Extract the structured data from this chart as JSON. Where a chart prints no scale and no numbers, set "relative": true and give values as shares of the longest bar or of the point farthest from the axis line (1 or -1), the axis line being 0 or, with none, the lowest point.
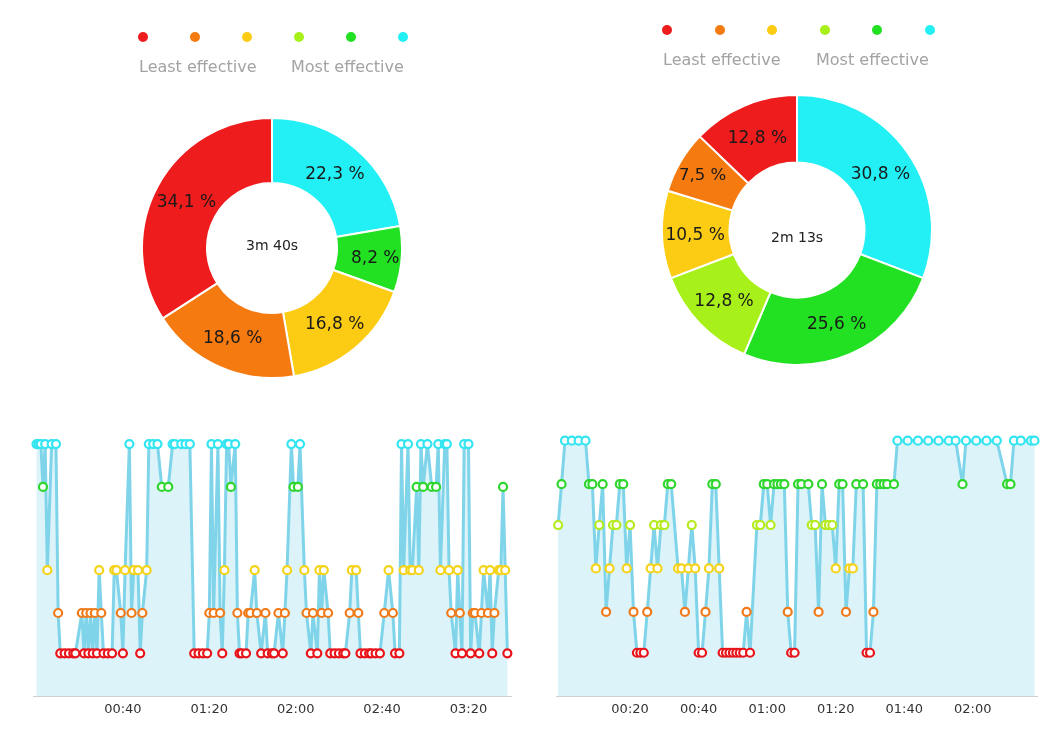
{
  "chart_data": [
    {
      "type": "donut",
      "categories": [
        null,
        null,
        null,
        null,
        null,
        null
      ],
      "values": [
        22.3,
        8.2,
        0,
        16.8,
        18.6,
        34.1
      ],
      "colors": [
        "#22f0f5",
        "#22e022",
        "#a8f01a",
        "#fccc14",
        "#f57a10",
        "#ee1c1c"
      ],
      "value_labels": [
        "22,3 %",
        "8,2 %",
        null,
        "16,8 %",
        "18,6 %",
        "34,1 %"
      ],
      "annotations": [
        "Least effective",
        "Most effective",
        "3m 40s"
      ]
    },
    {
      "type": "donut",
      "categories": [
        null,
        null,
        null,
        null,
        null,
        null
      ],
      "values": [
        30.8,
        25.6,
        12.8,
        10.5,
        7.5,
        12.8
      ],
      "colors": [
        "#22f0f5",
        "#22e022",
        "#a8f01a",
        "#fccc14",
        "#f57a10",
        "#ee1c1c"
      ],
      "value_labels": [
        "30,8 %",
        "25,6 %",
        "12,8 %",
        "10,5 %",
        "7,5 %",
        "12,8 %"
      ],
      "annotations": [
        "Least effective",
        "Most effective",
        "2m 13s"
      ]
    },
    {
      "type": "area",
      "relative": true,
      "marker": "circle",
      "line_style": "solid",
      "color": "#7fd4ea",
      "xlim": [
        -1.5,
        220
      ],
      "xticks": [
        {
          "value": 40,
          "label": "00:40"
        },
        {
          "value": 80,
          "label": "01:20"
        },
        {
          "value": 120,
          "label": "02:00"
        },
        {
          "value": 160,
          "label": "02:40"
        },
        {
          "value": 200,
          "label": "03:20"
        }
      ],
      "x": [
        0,
        1,
        2,
        3,
        4,
        5,
        7,
        9,
        10,
        11,
        13,
        15,
        17,
        18,
        21,
        22,
        23,
        24,
        25,
        26,
        27,
        28,
        29,
        30,
        31,
        33,
        35,
        36,
        37,
        39,
        40,
        41,
        43,
        44,
        45,
        47,
        48,
        49,
        51,
        52,
        54,
        56,
        58,
        61,
        63,
        64,
        67,
        69,
        71,
        73,
        75,
        77,
        79,
        80,
        81,
        82,
        84,
        85,
        86,
        87,
        88,
        89,
        90,
        92,
        93,
        94,
        95,
        97,
        98,
        99,
        101,
        102,
        104,
        106,
        107,
        109,
        110,
        112,
        114,
        115,
        116,
        118,
        119,
        121,
        122,
        124,
        125,
        127,
        128,
        130,
        131,
        132,
        133,
        135,
        136,
        138,
        140,
        142,
        143,
        145,
        146,
        148,
        149,
        150,
        152,
        154,
        155,
        157,
        159,
        161,
        163,
        165,
        166,
        168,
        169,
        170,
        172,
        173,
        174,
        176,
        177,
        178,
        179,
        181,
        183,
        185,
        186,
        187,
        189,
        190,
        191,
        192,
        194,
        195,
        196,
        197,
        198,
        200,
        201,
        202,
        203,
        205,
        206,
        207,
        209,
        210,
        211,
        212,
        214,
        215,
        216,
        217,
        218
      ],
      "values": [
        1,
        1,
        1,
        0.83,
        1,
        0.5,
        1,
        1,
        0.33,
        0.17,
        0.17,
        0.17,
        0.17,
        0.17,
        0.33,
        0.17,
        0.33,
        0.17,
        0.33,
        0.17,
        0.33,
        0.17,
        0.5,
        0.33,
        0.17,
        0.17,
        0.17,
        0.5,
        0.5,
        0.33,
        0.17,
        0.5,
        1,
        0.33,
        0.5,
        0.5,
        0.17,
        0.33,
        0.5,
        1,
        1,
        1,
        0.83,
        0.83,
        1,
        1,
        1,
        1,
        1,
        0.17,
        0.17,
        0.17,
        0.17,
        0.33,
        1,
        0.33,
        1,
        0.33,
        0.17,
        0.5,
        1,
        1,
        0.83,
        1,
        0.33,
        0.17,
        0.17,
        0.17,
        0.33,
        0.33,
        0.5,
        0.33,
        0.17,
        0.33,
        0.17,
        0.17,
        0.17,
        0.33,
        0.17,
        0.33,
        0.5,
        1,
        0.83,
        0.83,
        1,
        0.5,
        0.33,
        0.17,
        0.33,
        0.17,
        0.5,
        0.33,
        0.5,
        0.33,
        0.17,
        0.17,
        0.17,
        0.17,
        0.17,
        0.33,
        0.5,
        0.5,
        0.33,
        0.17,
        0.17,
        0.17,
        0.17,
        0.17,
        0.17,
        0.33,
        0.5,
        0.33,
        0.17,
        0.17,
        1,
        0.5,
        1,
        0.5,
        0.5,
        0.83,
        0.5,
        1,
        0.83,
        1,
        0.83,
        0.83,
        1,
        0.5,
        1,
        1,
        0.5,
        0.33,
        0.17,
        0.5,
        0.33,
        0.17,
        1,
        1,
        0.17,
        0.33,
        0.33,
        0.17,
        0.33,
        0.5,
        0.33,
        0.5,
        0.17,
        0.33,
        0.5,
        0.5,
        0.83,
        0.5,
        0.17
      ],
      "colors": [
        "#33e5f0",
        "#33e5f0",
        "#33e5f0",
        "#2ed62e",
        "#33e5f0",
        "#f5d31a",
        "#33e5f0",
        "#33e5f0",
        "#f07a1a",
        "#e8141a",
        "#e8141a",
        "#e8141a",
        "#e8141a",
        "#e8141a",
        "#f07a1a",
        "#e8141a",
        "#f07a1a",
        "#e8141a",
        "#f07a1a",
        "#e8141a",
        "#f07a1a",
        "#e8141a",
        "#f5d31a",
        "#f07a1a",
        "#e8141a",
        "#e8141a",
        "#e8141a",
        "#f5d31a",
        "#f5d31a",
        "#f07a1a",
        "#e8141a",
        "#f5d31a",
        "#33e5f0",
        "#f07a1a",
        "#f5d31a",
        "#f5d31a",
        "#e8141a",
        "#f07a1a",
        "#f5d31a",
        "#33e5f0",
        "#33e5f0",
        "#33e5f0",
        "#2ed62e",
        "#2ed62e",
        "#33e5f0",
        "#33e5f0",
        "#33e5f0",
        "#33e5f0",
        "#33e5f0",
        "#e8141a",
        "#e8141a",
        "#e8141a",
        "#e8141a",
        "#f07a1a",
        "#33e5f0",
        "#f07a1a",
        "#33e5f0",
        "#f07a1a",
        "#e8141a",
        "#f5d31a",
        "#33e5f0",
        "#33e5f0",
        "#2ed62e",
        "#33e5f0",
        "#f07a1a",
        "#e8141a",
        "#e8141a",
        "#e8141a",
        "#f07a1a",
        "#f07a1a",
        "#f5d31a",
        "#f07a1a",
        "#e8141a",
        "#f07a1a",
        "#e8141a",
        "#e8141a",
        "#e8141a",
        "#f07a1a",
        "#e8141a",
        "#f07a1a",
        "#f5d31a",
        "#33e5f0",
        "#2ed62e",
        "#2ed62e",
        "#33e5f0",
        "#f5d31a",
        "#f07a1a",
        "#e8141a",
        "#f07a1a",
        "#e8141a",
        "#f5d31a",
        "#f07a1a",
        "#f5d31a",
        "#f07a1a",
        "#e8141a",
        "#e8141a",
        "#e8141a",
        "#e8141a",
        "#e8141a",
        "#f07a1a",
        "#f5d31a",
        "#f5d31a",
        "#f07a1a",
        "#e8141a",
        "#e8141a",
        "#e8141a",
        "#e8141a",
        "#e8141a",
        "#e8141a",
        "#f07a1a",
        "#f5d31a",
        "#f07a1a",
        "#e8141a",
        "#e8141a",
        "#33e5f0",
        "#f5d31a",
        "#33e5f0",
        "#f5d31a",
        "#f5d31a",
        "#2ed62e",
        "#f5d31a",
        "#33e5f0",
        "#2ed62e",
        "#33e5f0",
        "#2ed62e",
        "#2ed62e",
        "#33e5f0",
        "#f5d31a",
        "#33e5f0",
        "#33e5f0",
        "#f5d31a",
        "#f07a1a",
        "#e8141a",
        "#f5d31a",
        "#f07a1a",
        "#e8141a",
        "#33e5f0",
        "#33e5f0",
        "#e8141a",
        "#f07a1a",
        "#f07a1a",
        "#e8141a",
        "#f07a1a",
        "#f5d31a",
        "#f07a1a",
        "#f5d31a",
        "#e8141a",
        "#f07a1a",
        "#f5d31a",
        "#f5d31a",
        "#2ed62e",
        "#f5d31a",
        "#e8141a"
      ]
    },
    {
      "type": "area",
      "relative": true,
      "marker": "circle",
      "line_style": "solid",
      "color": "#7fd4ea",
      "xlim": [
        -1.5,
        139
      ],
      "xticks": [
        {
          "value": 20,
          "label": "00:20"
        },
        {
          "value": 40,
          "label": "00:40"
        },
        {
          "value": 60,
          "label": "01:00"
        },
        {
          "value": 80,
          "label": "01:20"
        },
        {
          "value": 100,
          "label": "01:40"
        },
        {
          "value": 120,
          "label": "02:00"
        }
      ],
      "x": [
        -1,
        0,
        1,
        3,
        5,
        7,
        8,
        9,
        10,
        11,
        12,
        13,
        14,
        15,
        16,
        17,
        18,
        19,
        20,
        21,
        22,
        23,
        24,
        25,
        26,
        27,
        28,
        29,
        30,
        31,
        32,
        34,
        35,
        36,
        37,
        38,
        39,
        40,
        41,
        42,
        43,
        44,
        45,
        46,
        47,
        48,
        49,
        50,
        51,
        52,
        53,
        54,
        55,
        57,
        58,
        59,
        60,
        61,
        62,
        63,
        64,
        65,
        66,
        67,
        68,
        69,
        70,
        72,
        73,
        74,
        75,
        76,
        77,
        78,
        79,
        80,
        81,
        82,
        83,
        84,
        85,
        86,
        88,
        89,
        90,
        91,
        92,
        93,
        94,
        95,
        97,
        98,
        101,
        104,
        107,
        110,
        113,
        115,
        117,
        118,
        121,
        124,
        127,
        130,
        131,
        132,
        134,
        137,
        138
      ],
      "values": [
        0.67,
        0.83,
        1,
        1,
        1,
        1,
        0.83,
        0.83,
        0.5,
        0.67,
        0.83,
        0.33,
        0.5,
        0.67,
        0.67,
        0.83,
        0.83,
        0.5,
        0.67,
        0.33,
        0.17,
        0.17,
        0.17,
        0.33,
        0.5,
        0.67,
        0.5,
        0.67,
        0.67,
        0.83,
        0.83,
        0.5,
        0.5,
        0.33,
        0.5,
        0.67,
        0.5,
        0.17,
        0.17,
        0.33,
        0.5,
        0.83,
        0.83,
        0.5,
        0.17,
        0.17,
        0.17,
        0.17,
        0.17,
        0.17,
        0.17,
        0.33,
        0.17,
        0.67,
        0.67,
        0.83,
        0.83,
        0.67,
        0.83,
        0.83,
        0.83,
        0.83,
        0.33,
        0.17,
        0.17,
        0.83,
        0.83,
        0.83,
        0.67,
        0.67,
        0.33,
        0.83,
        0.67,
        0.67,
        0.67,
        0.5,
        0.83,
        0.83,
        0.33,
        0.5,
        0.5,
        0.83,
        0.83,
        0.17,
        0.17,
        0.33,
        0.83,
        0.83,
        0.83,
        0.83,
        0.83,
        1,
        1,
        1,
        1,
        1,
        1,
        1,
        0.83,
        1,
        1,
        1,
        1,
        0.83,
        0.83,
        1,
        1,
        1,
        1
      ],
      "colors": [
        "#b5ea1e",
        "#2ed62e",
        "#33e5f0",
        "#33e5f0",
        "#33e5f0",
        "#33e5f0",
        "#2ed62e",
        "#2ed62e",
        "#f5d31a",
        "#b5ea1e",
        "#2ed62e",
        "#f07a1a",
        "#f5d31a",
        "#b5ea1e",
        "#b5ea1e",
        "#2ed62e",
        "#2ed62e",
        "#f5d31a",
        "#b5ea1e",
        "#f07a1a",
        "#e8141a",
        "#e8141a",
        "#e8141a",
        "#f07a1a",
        "#f5d31a",
        "#b5ea1e",
        "#f5d31a",
        "#b5ea1e",
        "#b5ea1e",
        "#2ed62e",
        "#2ed62e",
        "#f5d31a",
        "#f5d31a",
        "#f07a1a",
        "#f5d31a",
        "#b5ea1e",
        "#f5d31a",
        "#e8141a",
        "#e8141a",
        "#f07a1a",
        "#f5d31a",
        "#2ed62e",
        "#2ed62e",
        "#f5d31a",
        "#e8141a",
        "#e8141a",
        "#e8141a",
        "#e8141a",
        "#e8141a",
        "#e8141a",
        "#e8141a",
        "#f07a1a",
        "#e8141a",
        "#b5ea1e",
        "#b5ea1e",
        "#2ed62e",
        "#2ed62e",
        "#b5ea1e",
        "#2ed62e",
        "#2ed62e",
        "#2ed62e",
        "#2ed62e",
        "#f07a1a",
        "#e8141a",
        "#e8141a",
        "#2ed62e",
        "#2ed62e",
        "#2ed62e",
        "#b5ea1e",
        "#b5ea1e",
        "#f07a1a",
        "#2ed62e",
        "#b5ea1e",
        "#b5ea1e",
        "#b5ea1e",
        "#f5d31a",
        "#2ed62e",
        "#2ed62e",
        "#f07a1a",
        "#f5d31a",
        "#f5d31a",
        "#2ed62e",
        "#2ed62e",
        "#e8141a",
        "#e8141a",
        "#f07a1a",
        "#2ed62e",
        "#2ed62e",
        "#2ed62e",
        "#2ed62e",
        "#2ed62e",
        "#33e5f0",
        "#33e5f0",
        "#33e5f0",
        "#33e5f0",
        "#33e5f0",
        "#33e5f0",
        "#33e5f0",
        "#2ed62e",
        "#33e5f0",
        "#33e5f0",
        "#33e5f0",
        "#33e5f0",
        "#2ed62e",
        "#2ed62e",
        "#33e5f0",
        "#33e5f0",
        "#33e5f0",
        "#33e5f0"
      ]
    }
  ]
}
